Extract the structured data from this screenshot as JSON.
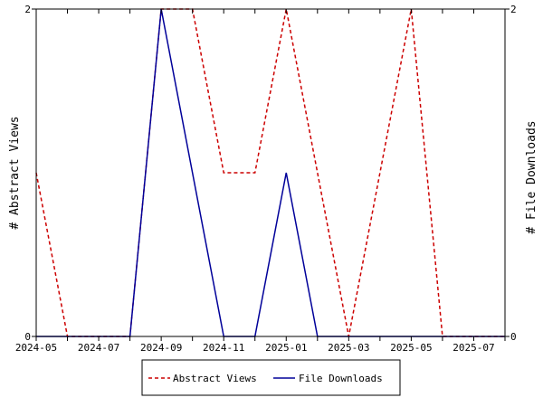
{
  "chart_data": {
    "type": "line",
    "x": [
      "2024-05",
      "2024-06",
      "2024-07",
      "2024-08",
      "2024-09",
      "2024-10",
      "2024-11",
      "2024-12",
      "2025-01",
      "2025-02",
      "2025-03",
      "2025-04",
      "2025-05",
      "2025-06",
      "2025-07",
      "2025-08"
    ],
    "x_tick_labels": [
      "2024-05",
      "2024-07",
      "2024-09",
      "2024-11",
      "2025-01",
      "2025-03",
      "2025-05",
      "2025-07"
    ],
    "y_left": {
      "label": "# Abstract Views",
      "ticks": [
        "0",
        "2"
      ],
      "range": [
        0,
        2
      ]
    },
    "y_right": {
      "label": "# File Downloads",
      "ticks": [
        "0",
        "2"
      ],
      "range": [
        0,
        2
      ]
    },
    "series": [
      {
        "name": "Abstract Views",
        "axis": "left",
        "color": "#cc0000",
        "style": "dashed",
        "values": [
          1,
          0,
          0,
          0,
          2,
          2,
          1,
          1,
          2,
          1,
          0,
          1,
          2,
          0,
          0,
          0
        ]
      },
      {
        "name": "File Downloads",
        "axis": "right",
        "color": "#000099",
        "style": "solid",
        "values": [
          0,
          0,
          0,
          0,
          2,
          1,
          0,
          0,
          1,
          0,
          0,
          0,
          0,
          0,
          0,
          0
        ]
      }
    ],
    "legend_placement": "bottom-center",
    "grid": false
  }
}
